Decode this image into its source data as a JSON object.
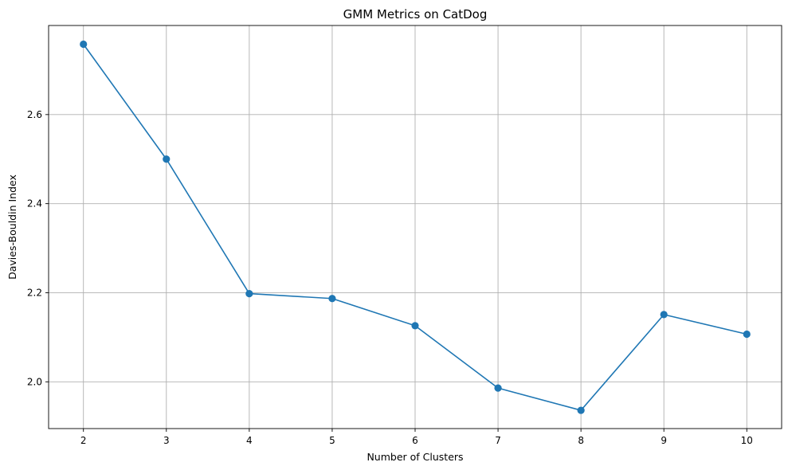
{
  "chart_data": {
    "type": "line",
    "title": "GMM Metrics on CatDog",
    "xlabel": "Number of Clusters",
    "ylabel": "Davies-Bouldin Index",
    "x": [
      2,
      3,
      4,
      5,
      6,
      7,
      8,
      9,
      10
    ],
    "series": [
      {
        "values": [
          2.758,
          2.5,
          2.198,
          2.187,
          2.126,
          1.986,
          1.936,
          2.151,
          2.107
        ],
        "color": "#1f77b4",
        "marker": "circle"
      }
    ],
    "xlim": [
      1.58,
      10.42
    ],
    "ylim": [
      1.895,
      2.8
    ],
    "xticks": [
      2,
      3,
      4,
      5,
      6,
      7,
      8,
      9,
      10
    ],
    "yticks": [
      2.0,
      2.2,
      2.4,
      2.6
    ],
    "ytick_labels": [
      "2.0",
      "2.2",
      "2.4",
      "2.6"
    ],
    "grid": true,
    "legend": "none"
  }
}
